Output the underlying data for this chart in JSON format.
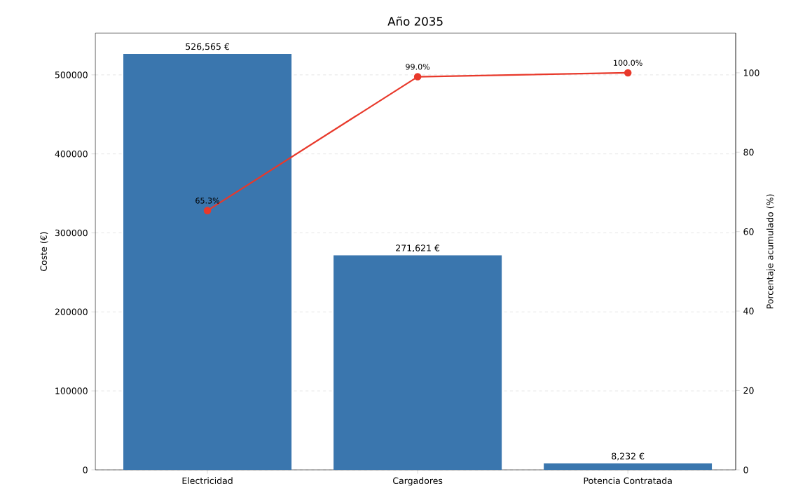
{
  "chart_data": {
    "type": "bar",
    "title": "Año 2035",
    "categories": [
      "Electricidad",
      "Cargadores",
      "Potencia Contratada"
    ],
    "ylabel": "Coste (€)",
    "y2label": "Porcentaje acumulado (%)",
    "ylim": [
      0,
      552893
    ],
    "yticks": [
      0,
      100000,
      200000,
      300000,
      400000,
      500000
    ],
    "y2lim": [
      0,
      110
    ],
    "y2ticks": [
      0,
      20,
      40,
      60,
      80,
      100
    ],
    "grid": "y",
    "marker": "circle",
    "line_style": "solid",
    "series": [
      {
        "color": "#3a76ae",
        "values": [
          526565,
          271621,
          8232
        ],
        "value_labels": [
          "526,565 €",
          "271,621 €",
          "8,232 €"
        ]
      },
      {
        "type": "line",
        "axis": "y2",
        "color": "#e8392b",
        "values": [
          65.3,
          99.0,
          100.0
        ],
        "value_labels": [
          "65.3%",
          "99.0%",
          "100.0%"
        ]
      }
    ]
  }
}
